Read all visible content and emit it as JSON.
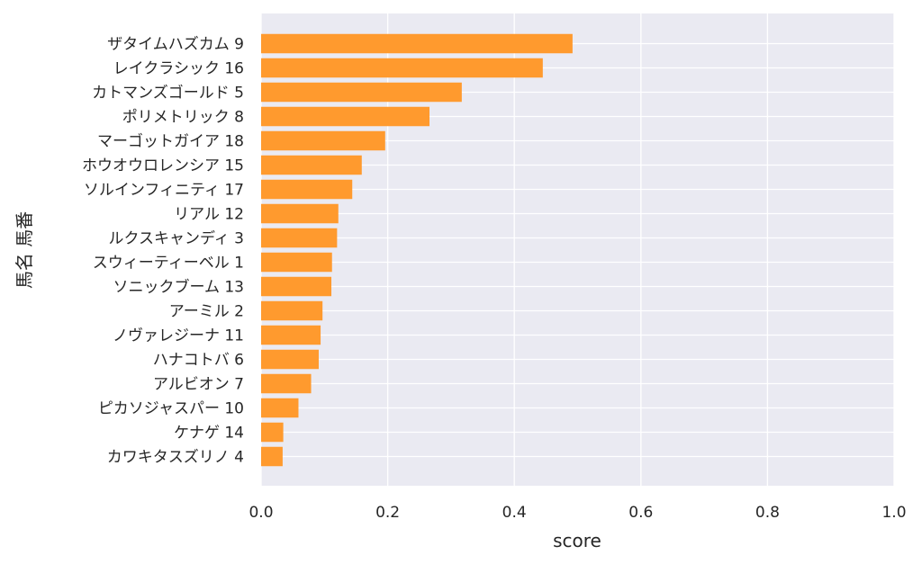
{
  "chart_data": {
    "type": "bar",
    "orientation": "horizontal",
    "title": "",
    "xlabel": "score",
    "ylabel": "馬名 馬番",
    "xlim": [
      0.0,
      1.0
    ],
    "xticks": [
      "0.0",
      "0.2",
      "0.4",
      "0.6",
      "0.8",
      "1.0"
    ],
    "grid": true,
    "bar_color": "#ff9a2e",
    "plot_background": "#eaeaf2",
    "categories": [
      "ザタイムハズカム 9",
      "レイクラシック 16",
      "カトマンズゴールド 5",
      "ポリメトリック 8",
      "マーゴットガイア 18",
      "ホウオウロレンシア 15",
      "ソルインフィニティ 17",
      "リアル 12",
      "ルクスキャンディ 3",
      "スウィーティーベル 1",
      "ソニックブーム 13",
      "アーミル 2",
      "ノヴァレジーナ 11",
      "ハナコトバ 6",
      "アルビオン 7",
      "ピカソジャスパー 10",
      "ケナゲ 14",
      "カワキタスズリノ 4"
    ],
    "values": [
      0.492,
      0.445,
      0.317,
      0.266,
      0.196,
      0.159,
      0.144,
      0.122,
      0.12,
      0.112,
      0.111,
      0.097,
      0.094,
      0.091,
      0.079,
      0.059,
      0.035,
      0.034
    ]
  }
}
